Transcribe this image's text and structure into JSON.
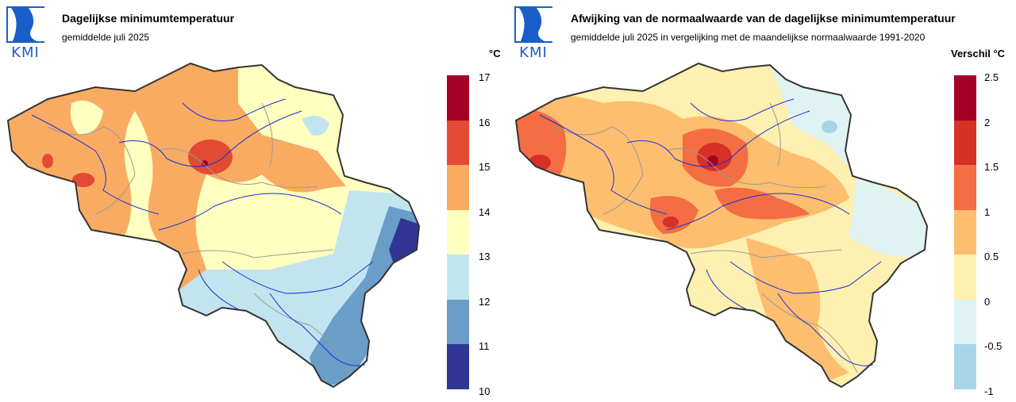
{
  "left": {
    "logo_text": "KMI",
    "title": "Dagelijkse minimumtemperatuur",
    "subtitle": "gemiddelde juli 2025",
    "unit": "°C",
    "legend": {
      "ticks": [
        "17",
        "16",
        "15",
        "14",
        "13",
        "12",
        "11",
        "10"
      ],
      "colors": [
        "#a50026",
        "#e34a33",
        "#f9ab62",
        "#ffffc0",
        "#c2e4ef",
        "#6a9dc8",
        "#313695"
      ]
    }
  },
  "right": {
    "logo_text": "KMI",
    "title": "Afwijking van de normaalwaarde van de dagelijkse minimumtemperatuur",
    "subtitle": "gemiddelde juli 2025 in vergelijking met de maandelijkse normaalwaarde 1991-2020",
    "unit": "Verschil °C",
    "legend": {
      "ticks": [
        "2.5",
        "2",
        "1.5",
        "1",
        "0.5",
        "0",
        "-0.5",
        "-1"
      ],
      "colors": [
        "#a50026",
        "#d73027",
        "#f46d43",
        "#fdbe70",
        "#fef0b0",
        "#e0f3f3",
        "#a6d5e8"
      ]
    }
  },
  "colors": {
    "border": "#333333",
    "river": "#1b2fd6",
    "province": "#9a9a9a",
    "logo": "#1a5fc8"
  }
}
